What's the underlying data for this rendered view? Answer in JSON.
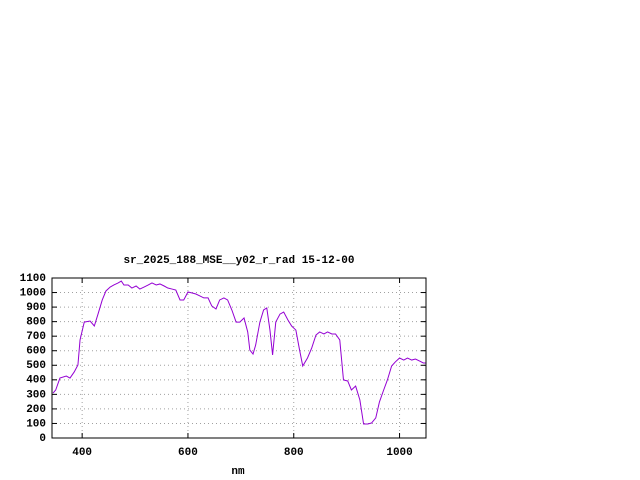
{
  "chart_data": {
    "type": "line",
    "title": "sr_2025_188_MSE__y02_r_rad 15-12-00",
    "x_label": "nm",
    "x": [
      345,
      350,
      358,
      370,
      377,
      385,
      392,
      396,
      404,
      415,
      423,
      430,
      438,
      445,
      453,
      460,
      468,
      474,
      479,
      487,
      494,
      502,
      509,
      517,
      525,
      532,
      540,
      547,
      555,
      562,
      570,
      577,
      585,
      592,
      600,
      608,
      615,
      623,
      630,
      638,
      645,
      653,
      660,
      668,
      675,
      683,
      691,
      698,
      706,
      713,
      717,
      723,
      728,
      736,
      743,
      749,
      755,
      760,
      766,
      774,
      781,
      789,
      796,
      804,
      811,
      817,
      826,
      834,
      842,
      849,
      857,
      864,
      872,
      879,
      887,
      894,
      902,
      909,
      917,
      925,
      932,
      940,
      947,
      955,
      962,
      970,
      977,
      985,
      992,
      1000,
      1008,
      1015,
      1023,
      1030,
      1038,
      1045,
      1049
    ],
    "series": [
      {
        "name": "sr_2025_188_MSE__y02_r_rad",
        "color": "#9400d3",
        "values": [
          309,
          330,
          412,
          426,
          412,
          454,
          502,
          674,
          797,
          804,
          770,
          852,
          949,
          1011,
          1038,
          1052,
          1066,
          1079,
          1052,
          1052,
          1031,
          1045,
          1024,
          1038,
          1052,
          1066,
          1052,
          1059,
          1045,
          1031,
          1024,
          1017,
          949,
          949,
          1004,
          997,
          990,
          976,
          963,
          963,
          908,
          887,
          949,
          963,
          949,
          880,
          797,
          797,
          825,
          729,
          605,
          577,
          639,
          797,
          880,
          894,
          742,
          571,
          797,
          852,
          866,
          811,
          770,
          742,
          605,
          495,
          550,
          619,
          708,
          729,
          715,
          729,
          715,
          715,
          674,
          399,
          392,
          330,
          357,
          261,
          96,
          96,
          103,
          138,
          248,
          330,
          399,
          495,
          523,
          550,
          536,
          550,
          536,
          543,
          529,
          516,
          516
        ]
      }
    ],
    "xlim": [
      343,
      1050
    ],
    "ylim": [
      0,
      1100
    ],
    "xticks": [
      400,
      600,
      800,
      1000
    ],
    "yticks": [
      0,
      100,
      200,
      300,
      400,
      500,
      600,
      700,
      800,
      900,
      1000,
      1100
    ],
    "grid": true
  }
}
